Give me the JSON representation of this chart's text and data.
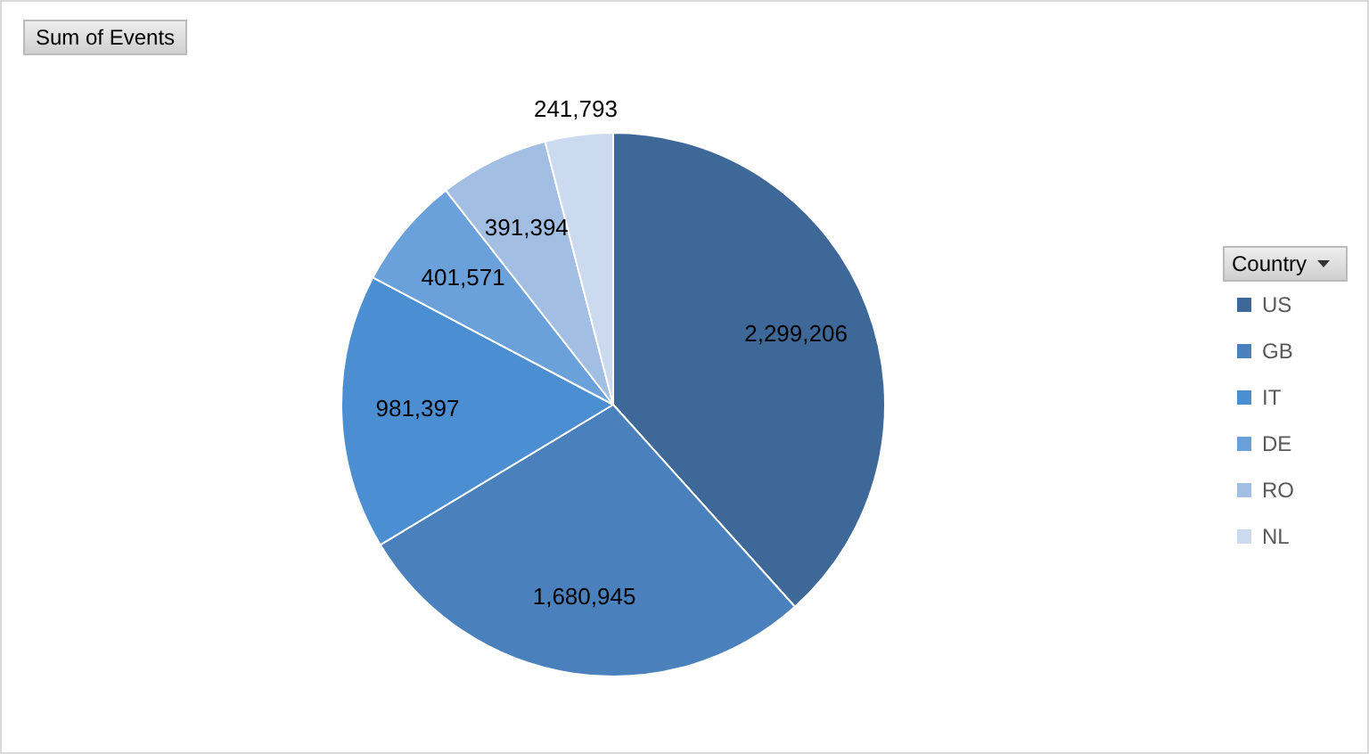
{
  "chart_data": {
    "type": "pie",
    "title": "Sum of Events",
    "legend_title": "Country",
    "legend": "right",
    "value_labels": [
      "2,299,206",
      "1,680,945",
      "981,397",
      "401,571",
      "391,394",
      "241,793"
    ],
    "categories": [
      "US",
      "GB",
      "IT",
      "DE",
      "RO",
      "NL"
    ],
    "values": [
      2299206,
      1680945,
      981397,
      401571,
      391394,
      241793
    ],
    "colors": [
      "#3d6897",
      "#4a80bb",
      "#4b8fd2",
      "#6ba1da",
      "#a2bfe3",
      "#cbdaef"
    ]
  }
}
